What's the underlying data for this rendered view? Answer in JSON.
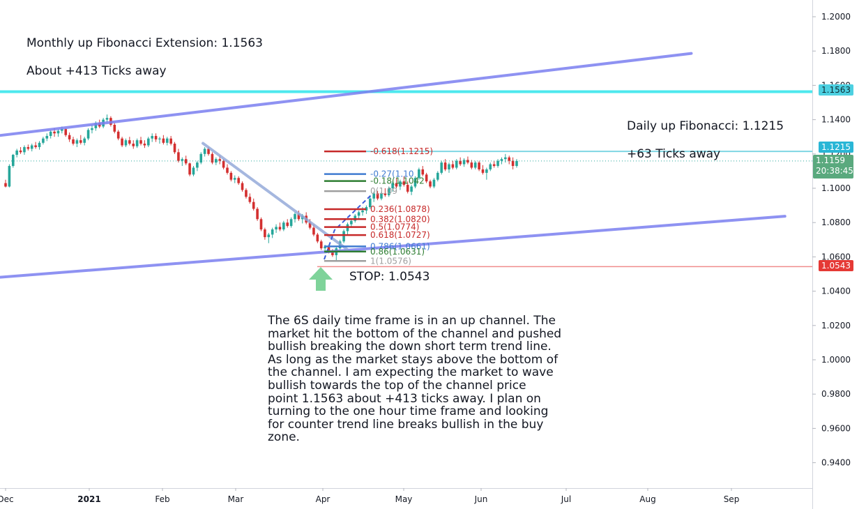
{
  "annotations": {
    "monthly_fib": "Monthly up Fibonacci Extension: 1.1563",
    "monthly_ticks": "About +413 Ticks away",
    "daily_fib": "Daily up Fibonacci: 1.1215",
    "daily_ticks": "+63 Ticks away",
    "stop": "STOP: 1.0543",
    "analysis": "The 6S daily time frame is in an up channel. The\nmarket hit the bottom of the channel and pushed\nbullish breaking the down short term trend line.\nAs long as the market stays above the bottom of\nthe channel. I am expecting the market to wave\nbullish towards the top of the channel price\npoint 1.1563 about +413 ticks away. I plan on\nturning to the one hour time frame and looking\nfor counter trend line breaks bullish in the buy\nzone."
  },
  "price_badges": {
    "target": "1.1563",
    "fib": "1.1215",
    "last": "1.1159",
    "countdown": "20:38:45",
    "stop": "1.0543"
  },
  "colors": {
    "channel": "#7b7ff0",
    "trendline": "#8fa6d8",
    "target_line": "#4de8ee",
    "fib_line": "#7fd6e3",
    "stop_line": "#f08c8c",
    "up_candle": "#26a69a",
    "down_candle": "#d32f2f",
    "badge_target": "#4dd0e1",
    "badge_fib": "#29b6d6",
    "badge_last": "#5aa97e",
    "badge_stop": "#e53935",
    "arrow": "#7fd39a",
    "fib_red": "#c62828",
    "fib_blue": "#3f7bd1",
    "fib_green": "#2e7d32",
    "fib_gray": "#9e9e9e"
  },
  "chart_data": {
    "type": "candlestick",
    "instrument": "6S",
    "timeframe": "daily",
    "x_ticks": [
      "Dec",
      "2021",
      "Feb",
      "Mar",
      "Apr",
      "May",
      "Jun",
      "Jul",
      "Aug",
      "Sep"
    ],
    "y_ticks": [
      "1.2000",
      "1.1800",
      "1.1600",
      "1.1400",
      "1.1200",
      "1.1000",
      "1.0800",
      "1.0600",
      "1.0400",
      "1.0200",
      "1.0000",
      "0.9800",
      "0.9600",
      "0.9400"
    ],
    "ylim": [
      0.928,
      1.2095
    ],
    "last_price": 1.1159,
    "target_price": 1.1563,
    "fib_target": 1.1215,
    "stop_price": 1.0543,
    "fib_levels": [
      {
        "label": "-0.618(1.1215)",
        "price": 1.1215,
        "color": "red"
      },
      {
        "label": "-0.27(1.10",
        "price": 1.1083,
        "color": "blue"
      },
      {
        "label": "-0.18(1.1042",
        "price": 1.1042,
        "color": "green"
      },
      {
        "label": "0(1.09",
        "price": 1.0983,
        "color": "gray"
      },
      {
        "label": "0.236(1.0878)",
        "price": 1.0878,
        "color": "red"
      },
      {
        "label": "0.382(1.0820)",
        "price": 1.082,
        "color": "red"
      },
      {
        "label": "0.5(1.0774)",
        "price": 1.0774,
        "color": "red"
      },
      {
        "label": "0.618(1.0727)",
        "price": 1.0727,
        "color": "red"
      },
      {
        "label": "0.786(1.0661)",
        "price": 1.0661,
        "color": "blue"
      },
      {
        "label": "0.86(1.0631)",
        "price": 1.0631,
        "color": "green"
      },
      {
        "label": "1(1.0576)",
        "price": 1.0576,
        "color": "gray"
      }
    ],
    "channel_upper": [
      {
        "date": "2020-11-26",
        "price": 1.1303
      },
      {
        "date": "2021-08-29",
        "price": 1.1786
      }
    ],
    "channel_lower": [
      {
        "date": "2020-11-26",
        "price": 1.0478
      },
      {
        "date": "2021-10-05",
        "price": 1.0837
      }
    ],
    "down_trendline": [
      {
        "date": "2021-02-17",
        "price": 1.1262
      },
      {
        "date": "2021-04-15",
        "price": 1.0644
      }
    ],
    "candles": [
      {
        "o": 1.103,
        "h": 1.105,
        "l": 1.1005,
        "c": 1.101
      },
      {
        "o": 1.101,
        "h": 1.114,
        "l": 1.1005,
        "c": 1.113
      },
      {
        "o": 1.113,
        "h": 1.12,
        "l": 1.112,
        "c": 1.1195
      },
      {
        "o": 1.1195,
        "h": 1.123,
        "l": 1.118,
        "c": 1.122
      },
      {
        "o": 1.122,
        "h": 1.124,
        "l": 1.12,
        "c": 1.121
      },
      {
        "o": 1.121,
        "h": 1.125,
        "l": 1.1195,
        "c": 1.124
      },
      {
        "o": 1.124,
        "h": 1.1255,
        "l": 1.122,
        "c": 1.123
      },
      {
        "o": 1.123,
        "h": 1.126,
        "l": 1.1215,
        "c": 1.125
      },
      {
        "o": 1.125,
        "h": 1.127,
        "l": 1.123,
        "c": 1.124
      },
      {
        "o": 1.124,
        "h": 1.1275,
        "l": 1.1225,
        "c": 1.1265
      },
      {
        "o": 1.1265,
        "h": 1.13,
        "l": 1.1255,
        "c": 1.129
      },
      {
        "o": 1.129,
        "h": 1.132,
        "l": 1.1275,
        "c": 1.1305
      },
      {
        "o": 1.1305,
        "h": 1.134,
        "l": 1.129,
        "c": 1.133
      },
      {
        "o": 1.133,
        "h": 1.135,
        "l": 1.13,
        "c": 1.132
      },
      {
        "o": 1.132,
        "h": 1.1345,
        "l": 1.13,
        "c": 1.1335
      },
      {
        "o": 1.1335,
        "h": 1.136,
        "l": 1.132,
        "c": 1.1345
      },
      {
        "o": 1.1345,
        "h": 1.135,
        "l": 1.13,
        "c": 1.131
      },
      {
        "o": 1.131,
        "h": 1.1325,
        "l": 1.127,
        "c": 1.1285
      },
      {
        "o": 1.1285,
        "h": 1.13,
        "l": 1.125,
        "c": 1.126
      },
      {
        "o": 1.126,
        "h": 1.129,
        "l": 1.124,
        "c": 1.128
      },
      {
        "o": 1.128,
        "h": 1.131,
        "l": 1.1255,
        "c": 1.1265
      },
      {
        "o": 1.1265,
        "h": 1.13,
        "l": 1.125,
        "c": 1.129
      },
      {
        "o": 1.129,
        "h": 1.135,
        "l": 1.128,
        "c": 1.134
      },
      {
        "o": 1.134,
        "h": 1.137,
        "l": 1.132,
        "c": 1.135
      },
      {
        "o": 1.135,
        "h": 1.139,
        "l": 1.1335,
        "c": 1.138
      },
      {
        "o": 1.138,
        "h": 1.14,
        "l": 1.135,
        "c": 1.136
      },
      {
        "o": 1.136,
        "h": 1.141,
        "l": 1.135,
        "c": 1.14
      },
      {
        "o": 1.14,
        "h": 1.143,
        "l": 1.1385,
        "c": 1.141
      },
      {
        "o": 1.141,
        "h": 1.142,
        "l": 1.136,
        "c": 1.137
      },
      {
        "o": 1.137,
        "h": 1.138,
        "l": 1.132,
        "c": 1.133
      },
      {
        "o": 1.133,
        "h": 1.134,
        "l": 1.128,
        "c": 1.129
      },
      {
        "o": 1.129,
        "h": 1.13,
        "l": 1.124,
        "c": 1.125
      },
      {
        "o": 1.125,
        "h": 1.129,
        "l": 1.124,
        "c": 1.128
      },
      {
        "o": 1.128,
        "h": 1.13,
        "l": 1.125,
        "c": 1.126
      },
      {
        "o": 1.126,
        "h": 1.128,
        "l": 1.123,
        "c": 1.1245
      },
      {
        "o": 1.1245,
        "h": 1.129,
        "l": 1.1235,
        "c": 1.128
      },
      {
        "o": 1.128,
        "h": 1.13,
        "l": 1.125,
        "c": 1.126
      },
      {
        "o": 1.126,
        "h": 1.128,
        "l": 1.1235,
        "c": 1.125
      },
      {
        "o": 1.125,
        "h": 1.13,
        "l": 1.124,
        "c": 1.129
      },
      {
        "o": 1.129,
        "h": 1.132,
        "l": 1.127,
        "c": 1.1305
      },
      {
        "o": 1.1305,
        "h": 1.132,
        "l": 1.127,
        "c": 1.1285
      },
      {
        "o": 1.1285,
        "h": 1.13,
        "l": 1.126,
        "c": 1.129
      },
      {
        "o": 1.129,
        "h": 1.131,
        "l": 1.1255,
        "c": 1.1265
      },
      {
        "o": 1.1265,
        "h": 1.13,
        "l": 1.125,
        "c": 1.129
      },
      {
        "o": 1.129,
        "h": 1.1305,
        "l": 1.125,
        "c": 1.126
      },
      {
        "o": 1.126,
        "h": 1.127,
        "l": 1.12,
        "c": 1.121
      },
      {
        "o": 1.121,
        "h": 1.123,
        "l": 1.115,
        "c": 1.116
      },
      {
        "o": 1.116,
        "h": 1.118,
        "l": 1.113,
        "c": 1.117
      },
      {
        "o": 1.117,
        "h": 1.119,
        "l": 1.1135,
        "c": 1.1145
      },
      {
        "o": 1.1145,
        "h": 1.115,
        "l": 1.107,
        "c": 1.108
      },
      {
        "o": 1.108,
        "h": 1.113,
        "l": 1.107,
        "c": 1.112
      },
      {
        "o": 1.112,
        "h": 1.116,
        "l": 1.11,
        "c": 1.115
      },
      {
        "o": 1.115,
        "h": 1.121,
        "l": 1.114,
        "c": 1.12
      },
      {
        "o": 1.12,
        "h": 1.124,
        "l": 1.1185,
        "c": 1.123
      },
      {
        "o": 1.123,
        "h": 1.124,
        "l": 1.119,
        "c": 1.12
      },
      {
        "o": 1.12,
        "h": 1.121,
        "l": 1.114,
        "c": 1.115
      },
      {
        "o": 1.115,
        "h": 1.118,
        "l": 1.1135,
        "c": 1.117
      },
      {
        "o": 1.117,
        "h": 1.119,
        "l": 1.114,
        "c": 1.116
      },
      {
        "o": 1.116,
        "h": 1.117,
        "l": 1.111,
        "c": 1.112
      },
      {
        "o": 1.112,
        "h": 1.114,
        "l": 1.108,
        "c": 1.109
      },
      {
        "o": 1.109,
        "h": 1.11,
        "l": 1.104,
        "c": 1.105
      },
      {
        "o": 1.105,
        "h": 1.1075,
        "l": 1.103,
        "c": 1.106
      },
      {
        "o": 1.106,
        "h": 1.107,
        "l": 1.102,
        "c": 1.103
      },
      {
        "o": 1.103,
        "h": 1.104,
        "l": 1.098,
        "c": 1.099
      },
      {
        "o": 1.099,
        "h": 1.1,
        "l": 1.094,
        "c": 1.095
      },
      {
        "o": 1.095,
        "h": 1.097,
        "l": 1.091,
        "c": 1.092
      },
      {
        "o": 1.092,
        "h": 1.094,
        "l": 1.087,
        "c": 1.088
      },
      {
        "o": 1.088,
        "h": 1.089,
        "l": 1.081,
        "c": 1.082
      },
      {
        "o": 1.082,
        "h": 1.083,
        "l": 1.075,
        "c": 1.076
      },
      {
        "o": 1.076,
        "h": 1.077,
        "l": 1.07,
        "c": 1.0715
      },
      {
        "o": 1.0715,
        "h": 1.074,
        "l": 1.068,
        "c": 1.073
      },
      {
        "o": 1.073,
        "h": 1.077,
        "l": 1.071,
        "c": 1.076
      },
      {
        "o": 1.076,
        "h": 1.079,
        "l": 1.074,
        "c": 1.0775
      },
      {
        "o": 1.0775,
        "h": 1.08,
        "l": 1.075,
        "c": 1.076
      },
      {
        "o": 1.076,
        "h": 1.081,
        "l": 1.075,
        "c": 1.08
      },
      {
        "o": 1.08,
        "h": 1.082,
        "l": 1.077,
        "c": 1.078
      },
      {
        "o": 1.078,
        "h": 1.083,
        "l": 1.077,
        "c": 1.082
      },
      {
        "o": 1.082,
        "h": 1.086,
        "l": 1.08,
        "c": 1.085
      },
      {
        "o": 1.085,
        "h": 1.087,
        "l": 1.081,
        "c": 1.082
      },
      {
        "o": 1.082,
        "h": 1.085,
        "l": 1.0795,
        "c": 1.084
      },
      {
        "o": 1.084,
        "h": 1.086,
        "l": 1.079,
        "c": 1.08
      },
      {
        "o": 1.08,
        "h": 1.082,
        "l": 1.076,
        "c": 1.077
      },
      {
        "o": 1.077,
        "h": 1.079,
        "l": 1.072,
        "c": 1.073
      },
      {
        "o": 1.073,
        "h": 1.074,
        "l": 1.068,
        "c": 1.069
      },
      {
        "o": 1.069,
        "h": 1.07,
        "l": 1.064,
        "c": 1.065
      },
      {
        "o": 1.065,
        "h": 1.067,
        "l": 1.062,
        "c": 1.066
      },
      {
        "o": 1.066,
        "h": 1.067,
        "l": 1.062,
        "c": 1.063
      },
      {
        "o": 1.063,
        "h": 1.0645,
        "l": 1.06,
        "c": 1.061
      },
      {
        "o": 1.061,
        "h": 1.066,
        "l": 1.0576,
        "c": 1.065
      },
      {
        "o": 1.065,
        "h": 1.07,
        "l": 1.064,
        "c": 1.069
      },
      {
        "o": 1.069,
        "h": 1.076,
        "l": 1.068,
        "c": 1.075
      },
      {
        "o": 1.075,
        "h": 1.08,
        "l": 1.073,
        "c": 1.079
      },
      {
        "o": 1.079,
        "h": 1.082,
        "l": 1.077,
        "c": 1.081
      },
      {
        "o": 1.081,
        "h": 1.085,
        "l": 1.08,
        "c": 1.084
      },
      {
        "o": 1.084,
        "h": 1.087,
        "l": 1.082,
        "c": 1.086
      },
      {
        "o": 1.086,
        "h": 1.089,
        "l": 1.084,
        "c": 1.087
      },
      {
        "o": 1.087,
        "h": 1.09,
        "l": 1.085,
        "c": 1.089
      },
      {
        "o": 1.089,
        "h": 1.095,
        "l": 1.088,
        "c": 1.094
      },
      {
        "o": 1.094,
        "h": 1.098,
        "l": 1.092,
        "c": 1.097
      },
      {
        "o": 1.097,
        "h": 1.0985,
        "l": 1.093,
        "c": 1.094
      },
      {
        "o": 1.094,
        "h": 1.098,
        "l": 1.093,
        "c": 1.097
      },
      {
        "o": 1.097,
        "h": 1.1,
        "l": 1.095,
        "c": 1.096
      },
      {
        "o": 1.096,
        "h": 1.101,
        "l": 1.095,
        "c": 1.1
      },
      {
        "o": 1.1,
        "h": 1.104,
        "l": 1.098,
        "c": 1.103
      },
      {
        "o": 1.103,
        "h": 1.106,
        "l": 1.1,
        "c": 1.101
      },
      {
        "o": 1.101,
        "h": 1.105,
        "l": 1.099,
        "c": 1.104
      },
      {
        "o": 1.104,
        "h": 1.107,
        "l": 1.101,
        "c": 1.102
      },
      {
        "o": 1.102,
        "h": 1.104,
        "l": 1.097,
        "c": 1.098
      },
      {
        "o": 1.098,
        "h": 1.102,
        "l": 1.096,
        "c": 1.101
      },
      {
        "o": 1.101,
        "h": 1.107,
        "l": 1.1,
        "c": 1.106
      },
      {
        "o": 1.106,
        "h": 1.112,
        "l": 1.105,
        "c": 1.111
      },
      {
        "o": 1.111,
        "h": 1.113,
        "l": 1.107,
        "c": 1.108
      },
      {
        "o": 1.108,
        "h": 1.109,
        "l": 1.103,
        "c": 1.104
      },
      {
        "o": 1.104,
        "h": 1.105,
        "l": 1.1,
        "c": 1.101
      },
      {
        "o": 1.101,
        "h": 1.106,
        "l": 1.1,
        "c": 1.105
      },
      {
        "o": 1.105,
        "h": 1.11,
        "l": 1.104,
        "c": 1.109
      },
      {
        "o": 1.109,
        "h": 1.116,
        "l": 1.108,
        "c": 1.115
      },
      {
        "o": 1.115,
        "h": 1.117,
        "l": 1.11,
        "c": 1.111
      },
      {
        "o": 1.111,
        "h": 1.115,
        "l": 1.109,
        "c": 1.114
      },
      {
        "o": 1.114,
        "h": 1.116,
        "l": 1.111,
        "c": 1.112
      },
      {
        "o": 1.112,
        "h": 1.117,
        "l": 1.111,
        "c": 1.116
      },
      {
        "o": 1.116,
        "h": 1.118,
        "l": 1.113,
        "c": 1.114
      },
      {
        "o": 1.114,
        "h": 1.1175,
        "l": 1.1125,
        "c": 1.1165
      },
      {
        "o": 1.1165,
        "h": 1.1185,
        "l": 1.114,
        "c": 1.115
      },
      {
        "o": 1.115,
        "h": 1.1165,
        "l": 1.111,
        "c": 1.112
      },
      {
        "o": 1.112,
        "h": 1.116,
        "l": 1.111,
        "c": 1.115
      },
      {
        "o": 1.115,
        "h": 1.116,
        "l": 1.11,
        "c": 1.111
      },
      {
        "o": 1.111,
        "h": 1.1135,
        "l": 1.108,
        "c": 1.109
      },
      {
        "o": 1.109,
        "h": 1.112,
        "l": 1.105,
        "c": 1.111
      },
      {
        "o": 1.111,
        "h": 1.115,
        "l": 1.11,
        "c": 1.114
      },
      {
        "o": 1.114,
        "h": 1.116,
        "l": 1.112,
        "c": 1.113
      },
      {
        "o": 1.113,
        "h": 1.117,
        "l": 1.112,
        "c": 1.116
      },
      {
        "o": 1.116,
        "h": 1.118,
        "l": 1.114,
        "c": 1.117
      },
      {
        "o": 1.117,
        "h": 1.12,
        "l": 1.115,
        "c": 1.118
      },
      {
        "o": 1.118,
        "h": 1.119,
        "l": 1.114,
        "c": 1.116
      },
      {
        "o": 1.116,
        "h": 1.118,
        "l": 1.111,
        "c": 1.113
      },
      {
        "o": 1.113,
        "h": 1.117,
        "l": 1.112,
        "c": 1.1159
      }
    ]
  }
}
